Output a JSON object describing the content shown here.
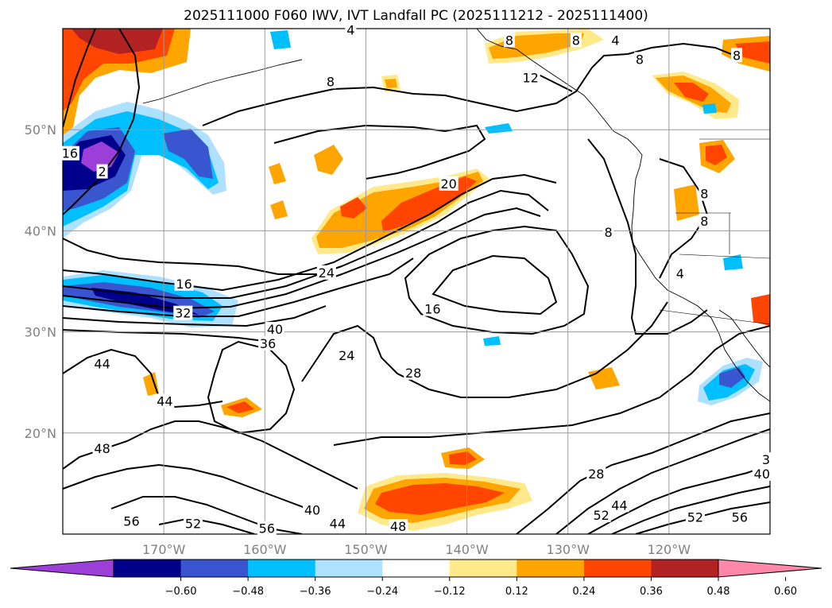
{
  "title": "2025111000 F060 IWV, IVT Landfall PC (2025111212 - 2025111400)",
  "map": {
    "lon_range": [
      -180,
      -110
    ],
    "lat_range": [
      10,
      60
    ],
    "lon_ticks": [
      {
        "value": -170,
        "label": "170°W"
      },
      {
        "value": -160,
        "label": "160°W"
      },
      {
        "value": -150,
        "label": "150°W"
      },
      {
        "value": -140,
        "label": "140°W"
      },
      {
        "value": -130,
        "label": "130°W"
      },
      {
        "value": -120,
        "label": "120°W"
      }
    ],
    "lat_ticks": [
      {
        "value": 20,
        "label": "20°N"
      },
      {
        "value": 30,
        "label": "30°N"
      },
      {
        "value": 40,
        "label": "40°N"
      },
      {
        "value": 50,
        "label": "50°N"
      }
    ],
    "grid": true,
    "contour_labels": [
      {
        "text": "8",
        "lon": -153.5,
        "lat": 54.7
      },
      {
        "text": "4",
        "lon": -151.5,
        "lat": 59.8
      },
      {
        "text": "8",
        "lon": -135.8,
        "lat": 58.8
      },
      {
        "text": "12",
        "lon": -133.7,
        "lat": 55.1
      },
      {
        "text": "8",
        "lon": -129.2,
        "lat": 58.8
      },
      {
        "text": "4",
        "lon": -125.3,
        "lat": 58.8
      },
      {
        "text": "8",
        "lon": -122.9,
        "lat": 56.9
      },
      {
        "text": "8",
        "lon": -113.3,
        "lat": 57.3
      },
      {
        "text": "16",
        "lon": -179.3,
        "lat": 47.6
      },
      {
        "text": "2",
        "lon": -176.1,
        "lat": 45.8
      },
      {
        "text": "20",
        "lon": -141.8,
        "lat": 44.6
      },
      {
        "text": "24",
        "lon": -153.9,
        "lat": 35.8
      },
      {
        "text": "16",
        "lon": -168.0,
        "lat": 34.7
      },
      {
        "text": "32",
        "lon": -168.1,
        "lat": 31.8
      },
      {
        "text": "40",
        "lon": -159.0,
        "lat": 30.2
      },
      {
        "text": "36",
        "lon": -159.7,
        "lat": 28.8
      },
      {
        "text": "24",
        "lon": -151.9,
        "lat": 27.6
      },
      {
        "text": "16",
        "lon": -143.4,
        "lat": 32.2
      },
      {
        "text": "28",
        "lon": -145.3,
        "lat": 25.9
      },
      {
        "text": "44",
        "lon": -176.1,
        "lat": 26.8
      },
      {
        "text": "44",
        "lon": -169.9,
        "lat": 23.1
      },
      {
        "text": "48",
        "lon": -176.1,
        "lat": 18.4
      },
      {
        "text": "56",
        "lon": -173.2,
        "lat": 11.2
      },
      {
        "text": "52",
        "lon": -167.1,
        "lat": 11.0
      },
      {
        "text": "56",
        "lon": -159.8,
        "lat": 10.5
      },
      {
        "text": "40",
        "lon": -155.3,
        "lat": 12.3
      },
      {
        "text": "44",
        "lon": -152.8,
        "lat": 11.0
      },
      {
        "text": "48",
        "lon": -146.8,
        "lat": 10.7
      },
      {
        "text": "28",
        "lon": -127.2,
        "lat": 15.9
      },
      {
        "text": "44",
        "lon": -124.9,
        "lat": 12.8
      },
      {
        "text": "52",
        "lon": -126.7,
        "lat": 11.8
      },
      {
        "text": "52",
        "lon": -117.4,
        "lat": 11.6
      },
      {
        "text": "56",
        "lon": -113.0,
        "lat": 11.6
      },
      {
        "text": "40",
        "lon": -110.8,
        "lat": 15.9
      },
      {
        "text": "3",
        "lon": -110.4,
        "lat": 17.3
      },
      {
        "text": "8",
        "lon": -116.5,
        "lat": 40.9
      },
      {
        "text": "8",
        "lon": -116.5,
        "lat": 43.6
      },
      {
        "text": "4",
        "lon": -118.9,
        "lat": 35.7
      },
      {
        "text": "8",
        "lon": -126.0,
        "lat": 39.8
      }
    ]
  },
  "colorbar": {
    "labels": [
      "−0.60",
      "−0.48",
      "−0.36",
      "−0.24",
      "−0.12",
      "0.12",
      "0.24",
      "0.36",
      "0.48",
      "0.60"
    ],
    "colors": [
      "#9b3fd8",
      "#00008b",
      "#3a55d0",
      "#00bfff",
      "#aee0ff",
      "#ffffff",
      "#ffe98a",
      "#ffa500",
      "#ff4500",
      "#b22222",
      "#ff88aa"
    ]
  }
}
